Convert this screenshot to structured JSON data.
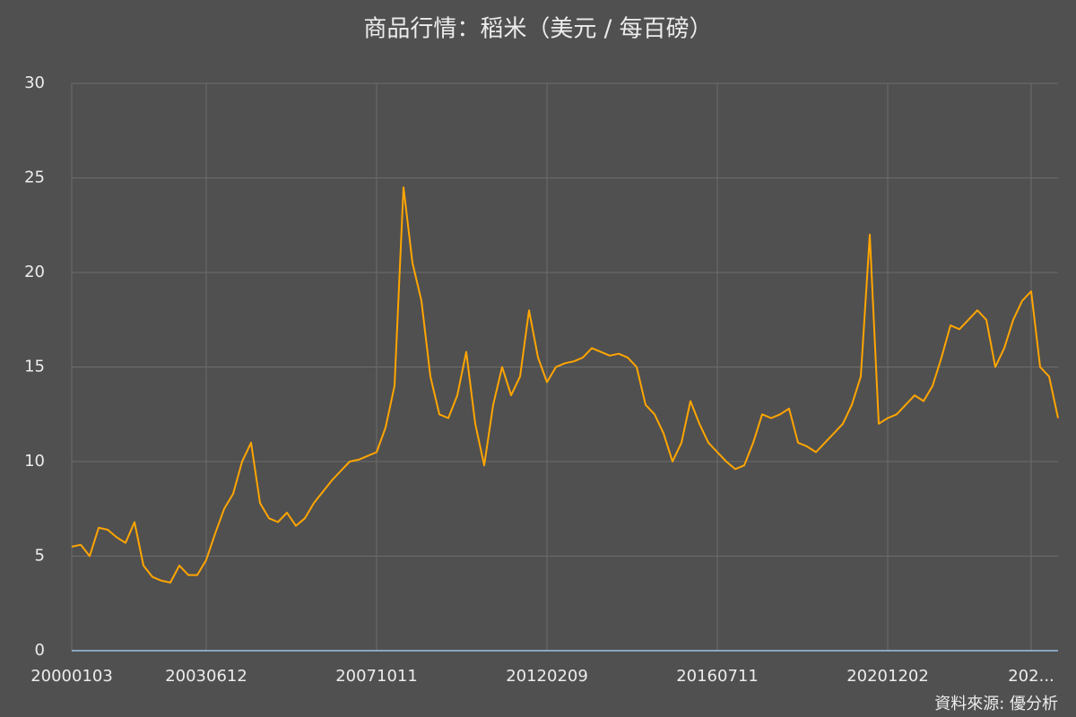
{
  "chart_data": {
    "type": "line",
    "title": "商品行情：稻米（美元 / 每百磅）",
    "source": "資料來源: 優分析",
    "categories": [
      "20000103",
      null,
      null,
      null,
      null,
      null,
      null,
      null,
      null,
      null,
      null,
      null,
      null,
      null,
      null,
      "20030612",
      null,
      null,
      null,
      null,
      null,
      null,
      null,
      null,
      null,
      null,
      null,
      null,
      null,
      null,
      null,
      null,
      null,
      null,
      "20071011",
      null,
      null,
      null,
      null,
      null,
      null,
      null,
      null,
      null,
      null,
      null,
      null,
      null,
      null,
      null,
      null,
      null,
      null,
      "20120209",
      null,
      null,
      null,
      null,
      null,
      null,
      null,
      null,
      null,
      null,
      null,
      null,
      null,
      null,
      null,
      null,
      null,
      null,
      "20160711",
      null,
      null,
      null,
      null,
      null,
      null,
      null,
      null,
      null,
      null,
      null,
      null,
      null,
      null,
      null,
      null,
      null,
      null,
      "20201202",
      null,
      null,
      null,
      null,
      null,
      null,
      null,
      null,
      null,
      null,
      null,
      null,
      null,
      null,
      null,
      "202...",
      null,
      null,
      null
    ],
    "values": [
      5.5,
      5.6,
      5.0,
      6.5,
      6.4,
      6.0,
      5.7,
      6.8,
      4.5,
      3.9,
      3.7,
      3.6,
      4.5,
      4.0,
      4.0,
      4.8,
      6.2,
      7.5,
      8.3,
      10.0,
      11.0,
      7.8,
      7.0,
      6.8,
      7.3,
      6.6,
      7.0,
      7.8,
      8.4,
      9.0,
      9.5,
      10.0,
      10.1,
      10.3,
      10.5,
      11.8,
      14.0,
      24.5,
      20.5,
      18.5,
      14.5,
      12.5,
      12.3,
      13.5,
      15.8,
      12.0,
      9.8,
      13.0,
      15.0,
      13.5,
      14.5,
      18.0,
      15.5,
      14.2,
      15.0,
      15.2,
      15.3,
      15.5,
      16.0,
      15.8,
      15.6,
      15.7,
      15.5,
      15.0,
      13.0,
      12.5,
      11.5,
      10.0,
      11.0,
      13.2,
      12.0,
      11.0,
      10.5,
      10.0,
      9.6,
      9.8,
      11.0,
      12.5,
      12.3,
      12.5,
      12.8,
      11.0,
      10.8,
      10.5,
      11.0,
      11.5,
      12.0,
      13.0,
      14.5,
      22.0,
      12.0,
      12.3,
      12.5,
      13.0,
      13.5,
      13.2,
      14.0,
      15.5,
      17.2,
      17.0,
      17.5,
      18.0,
      17.5,
      15.0,
      16.0,
      17.5,
      18.5,
      19.0,
      15.0,
      14.5,
      12.3
    ],
    "color": "#ffa500",
    "ylim": [
      0,
      30
    ],
    "yticks": [
      0,
      5,
      10,
      15,
      20,
      25,
      30
    ],
    "grid": true
  }
}
